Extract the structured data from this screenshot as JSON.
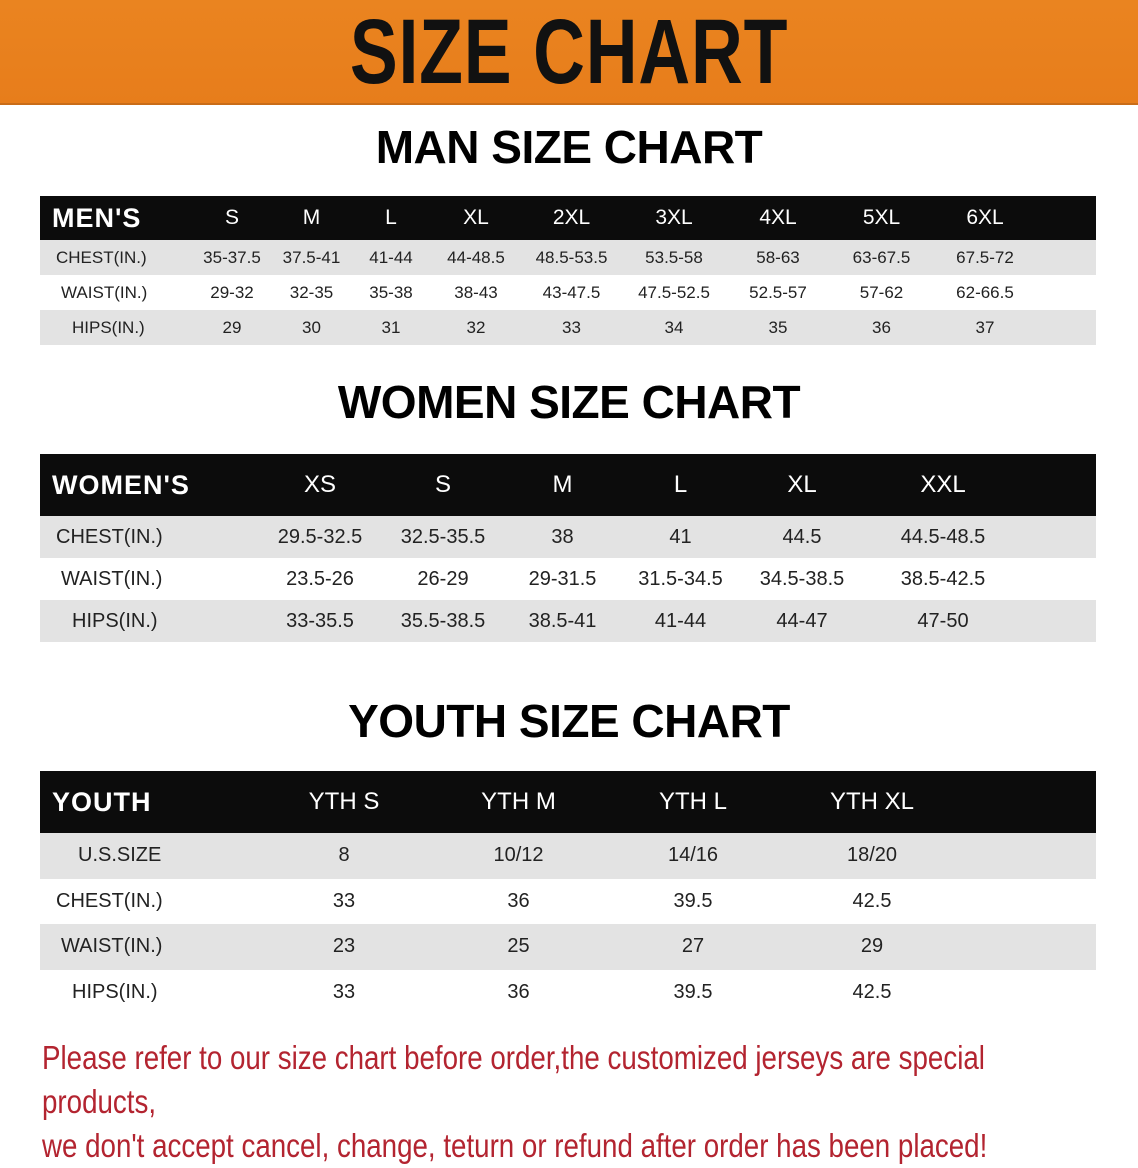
{
  "banner": {
    "title": "SIZE CHART",
    "color": "#e8811e"
  },
  "men": {
    "title": "MAN SIZE CHART",
    "header": [
      "MEN'S",
      "S",
      "M",
      "L",
      "XL",
      "2XL",
      "3XL",
      "4XL",
      "5XL",
      "6XL"
    ],
    "rows": [
      {
        "label": "CHEST(IN.)",
        "values": [
          "35-37.5",
          "37.5-41",
          "41-44",
          "44-48.5",
          "48.5-53.5",
          "53.5-58",
          "58-63",
          "63-67.5",
          "67.5-72"
        ]
      },
      {
        "label": "WAIST(IN.)",
        "values": [
          "29-32",
          "32-35",
          "35-38",
          "38-43",
          "43-47.5",
          "47.5-52.5",
          "52.5-57",
          "57-62",
          "62-66.5"
        ]
      },
      {
        "label": "HIPS(IN.)",
        "values": [
          "29",
          "30",
          "31",
          "32",
          "33",
          "34",
          "35",
          "36",
          "37"
        ]
      }
    ]
  },
  "women": {
    "title": "WOMEN SIZE CHART",
    "header": [
      "WOMEN'S",
      "XS",
      "S",
      "M",
      "L",
      "XL",
      "XXL"
    ],
    "rows": [
      {
        "label": "CHEST(IN.)",
        "values": [
          "29.5-32.5",
          "32.5-35.5",
          "38",
          "41",
          "44.5",
          "44.5-48.5"
        ]
      },
      {
        "label": "WAIST(IN.)",
        "values": [
          "23.5-26",
          "26-29",
          "29-31.5",
          "31.5-34.5",
          "34.5-38.5",
          "38.5-42.5"
        ]
      },
      {
        "label": "HIPS(IN.)",
        "values": [
          "33-35.5",
          "35.5-38.5",
          "38.5-41",
          "41-44",
          "44-47",
          "47-50"
        ]
      }
    ]
  },
  "youth": {
    "title": "YOUTH SIZE CHART",
    "header": [
      "YOUTH",
      "YTH S",
      "YTH M",
      "YTH L",
      "YTH XL"
    ],
    "rows": [
      {
        "label": "U.S.SIZE",
        "values": [
          "8",
          "10/12",
          "14/16",
          "18/20"
        ]
      },
      {
        "label": "CHEST(IN.)",
        "values": [
          "33",
          "36",
          "39.5",
          "42.5"
        ]
      },
      {
        "label": "WAIST(IN.)",
        "values": [
          "23",
          "25",
          "27",
          "29"
        ]
      },
      {
        "label": "HIPS(IN.)",
        "values": [
          "33",
          "36",
          "39.5",
          "42.5"
        ]
      }
    ]
  },
  "footer": {
    "line1": "Please refer to our size chart before order,the customized jerseys are special products,",
    "line2": "we don't accept cancel, change, teturn or refund after order has been placed!",
    "color": "#b32430"
  }
}
